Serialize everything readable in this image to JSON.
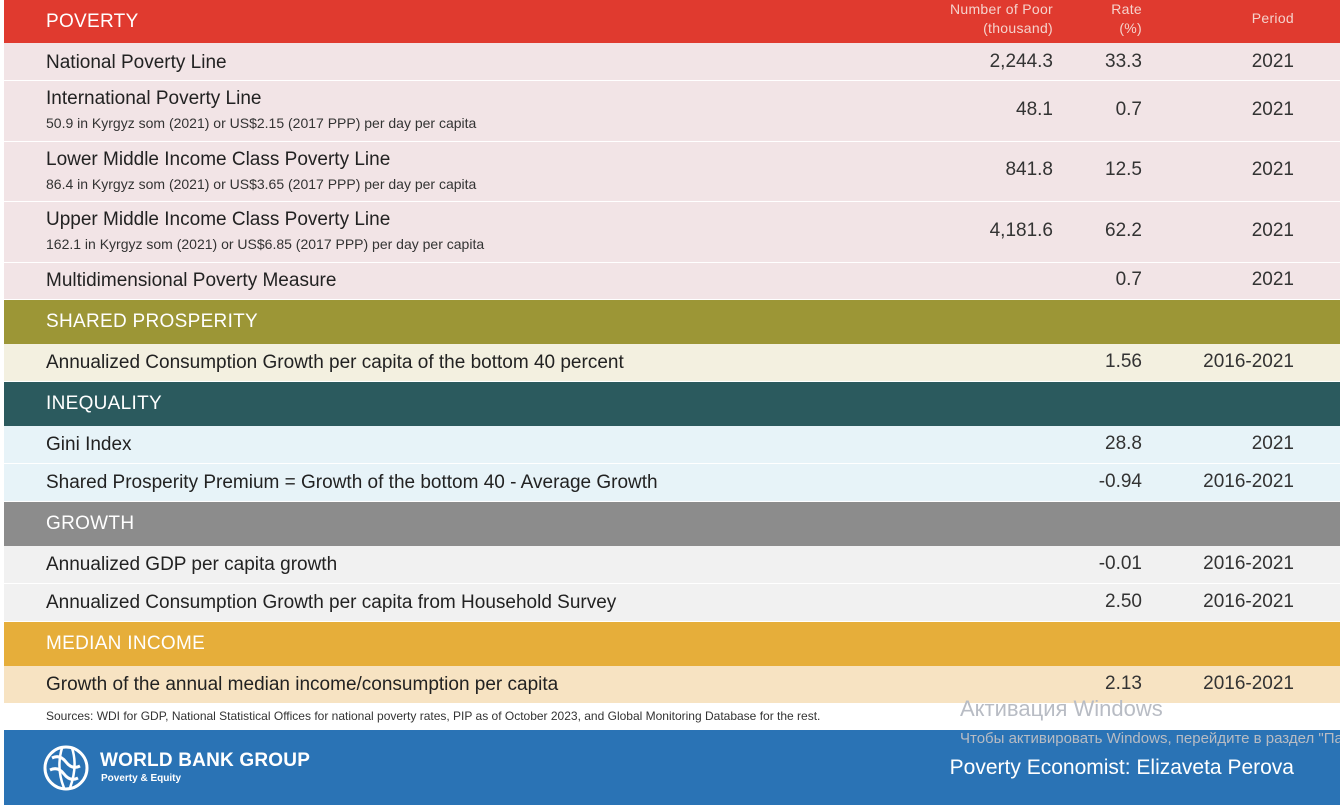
{
  "colors": {
    "poverty": "#e03a2f",
    "shared_prosperity": "#9c9636",
    "inequality": "#2b5a5e",
    "growth": "#8c8c8c",
    "median_income": "#e6ae3a",
    "footer": "#2a73b5"
  },
  "columns": {
    "number_line1": "Number of Poor",
    "number_line2": "(thousand)",
    "rate_line1": "Rate",
    "rate_line2": "(%)",
    "period": "Period"
  },
  "poverty": {
    "title": "POVERTY",
    "rows": [
      {
        "label": "National Poverty Line",
        "sub": "",
        "number": "2,244.3",
        "rate": "33.3",
        "period": "2021"
      },
      {
        "label": "International Poverty Line",
        "sub": "50.9 in Kyrgyz som (2021) or US$2.15 (2017 PPP) per day per capita",
        "number": "48.1",
        "rate": "0.7",
        "period": "2021"
      },
      {
        "label": "Lower Middle Income Class Poverty Line",
        "sub": "86.4 in Kyrgyz som (2021) or US$3.65 (2017 PPP) per day per capita",
        "number": "841.8",
        "rate": "12.5",
        "period": "2021"
      },
      {
        "label": "Upper Middle Income Class Poverty Line",
        "sub": "162.1 in Kyrgyz som (2021) or US$6.85 (2017 PPP) per day per capita",
        "number": "4,181.6",
        "rate": "62.2",
        "period": "2021"
      },
      {
        "label": "Multidimensional Poverty Measure",
        "sub": "",
        "number": "",
        "rate": "0.7",
        "period": "2021"
      }
    ]
  },
  "shared_prosperity": {
    "title": "SHARED PROSPERITY",
    "rows": [
      {
        "label": "Annualized Consumption Growth per capita of the bottom 40 percent",
        "rate": "1.56",
        "period": "2016-2021"
      }
    ]
  },
  "inequality": {
    "title": "INEQUALITY",
    "rows": [
      {
        "label": "Gini Index",
        "rate": "28.8",
        "period": "2021"
      },
      {
        "label": "Shared Prosperity Premium = Growth of the bottom 40 - Average Growth",
        "rate": "-0.94",
        "period": "2016-2021"
      }
    ]
  },
  "growth": {
    "title": "GROWTH",
    "rows": [
      {
        "label": "Annualized GDP per capita growth",
        "rate": "-0.01",
        "period": "2016-2021"
      },
      {
        "label": "Annualized Consumption Growth per capita from Household Survey",
        "rate": "2.50",
        "period": "2016-2021"
      }
    ]
  },
  "median_income": {
    "title": "MEDIAN INCOME",
    "rows": [
      {
        "label": "Growth of the annual median income/consumption per capita",
        "rate": "2.13",
        "period": "2016-2021"
      }
    ]
  },
  "sources": "Sources: WDI for GDP, National Statistical Offices for national poverty rates, PIP as of October 2023, and Global Monitoring Database for the rest.",
  "footer": {
    "org_name": "WORLD BANK GROUP",
    "org_sub": "Poverty & Equity",
    "logo_icon": "globe-icon",
    "economist": "Poverty Economist: Elizaveta Perova"
  },
  "watermark": {
    "title": "Активация Windows",
    "text": "Чтобы активировать Windows, перейдите в раздел \"Параметры\"."
  }
}
